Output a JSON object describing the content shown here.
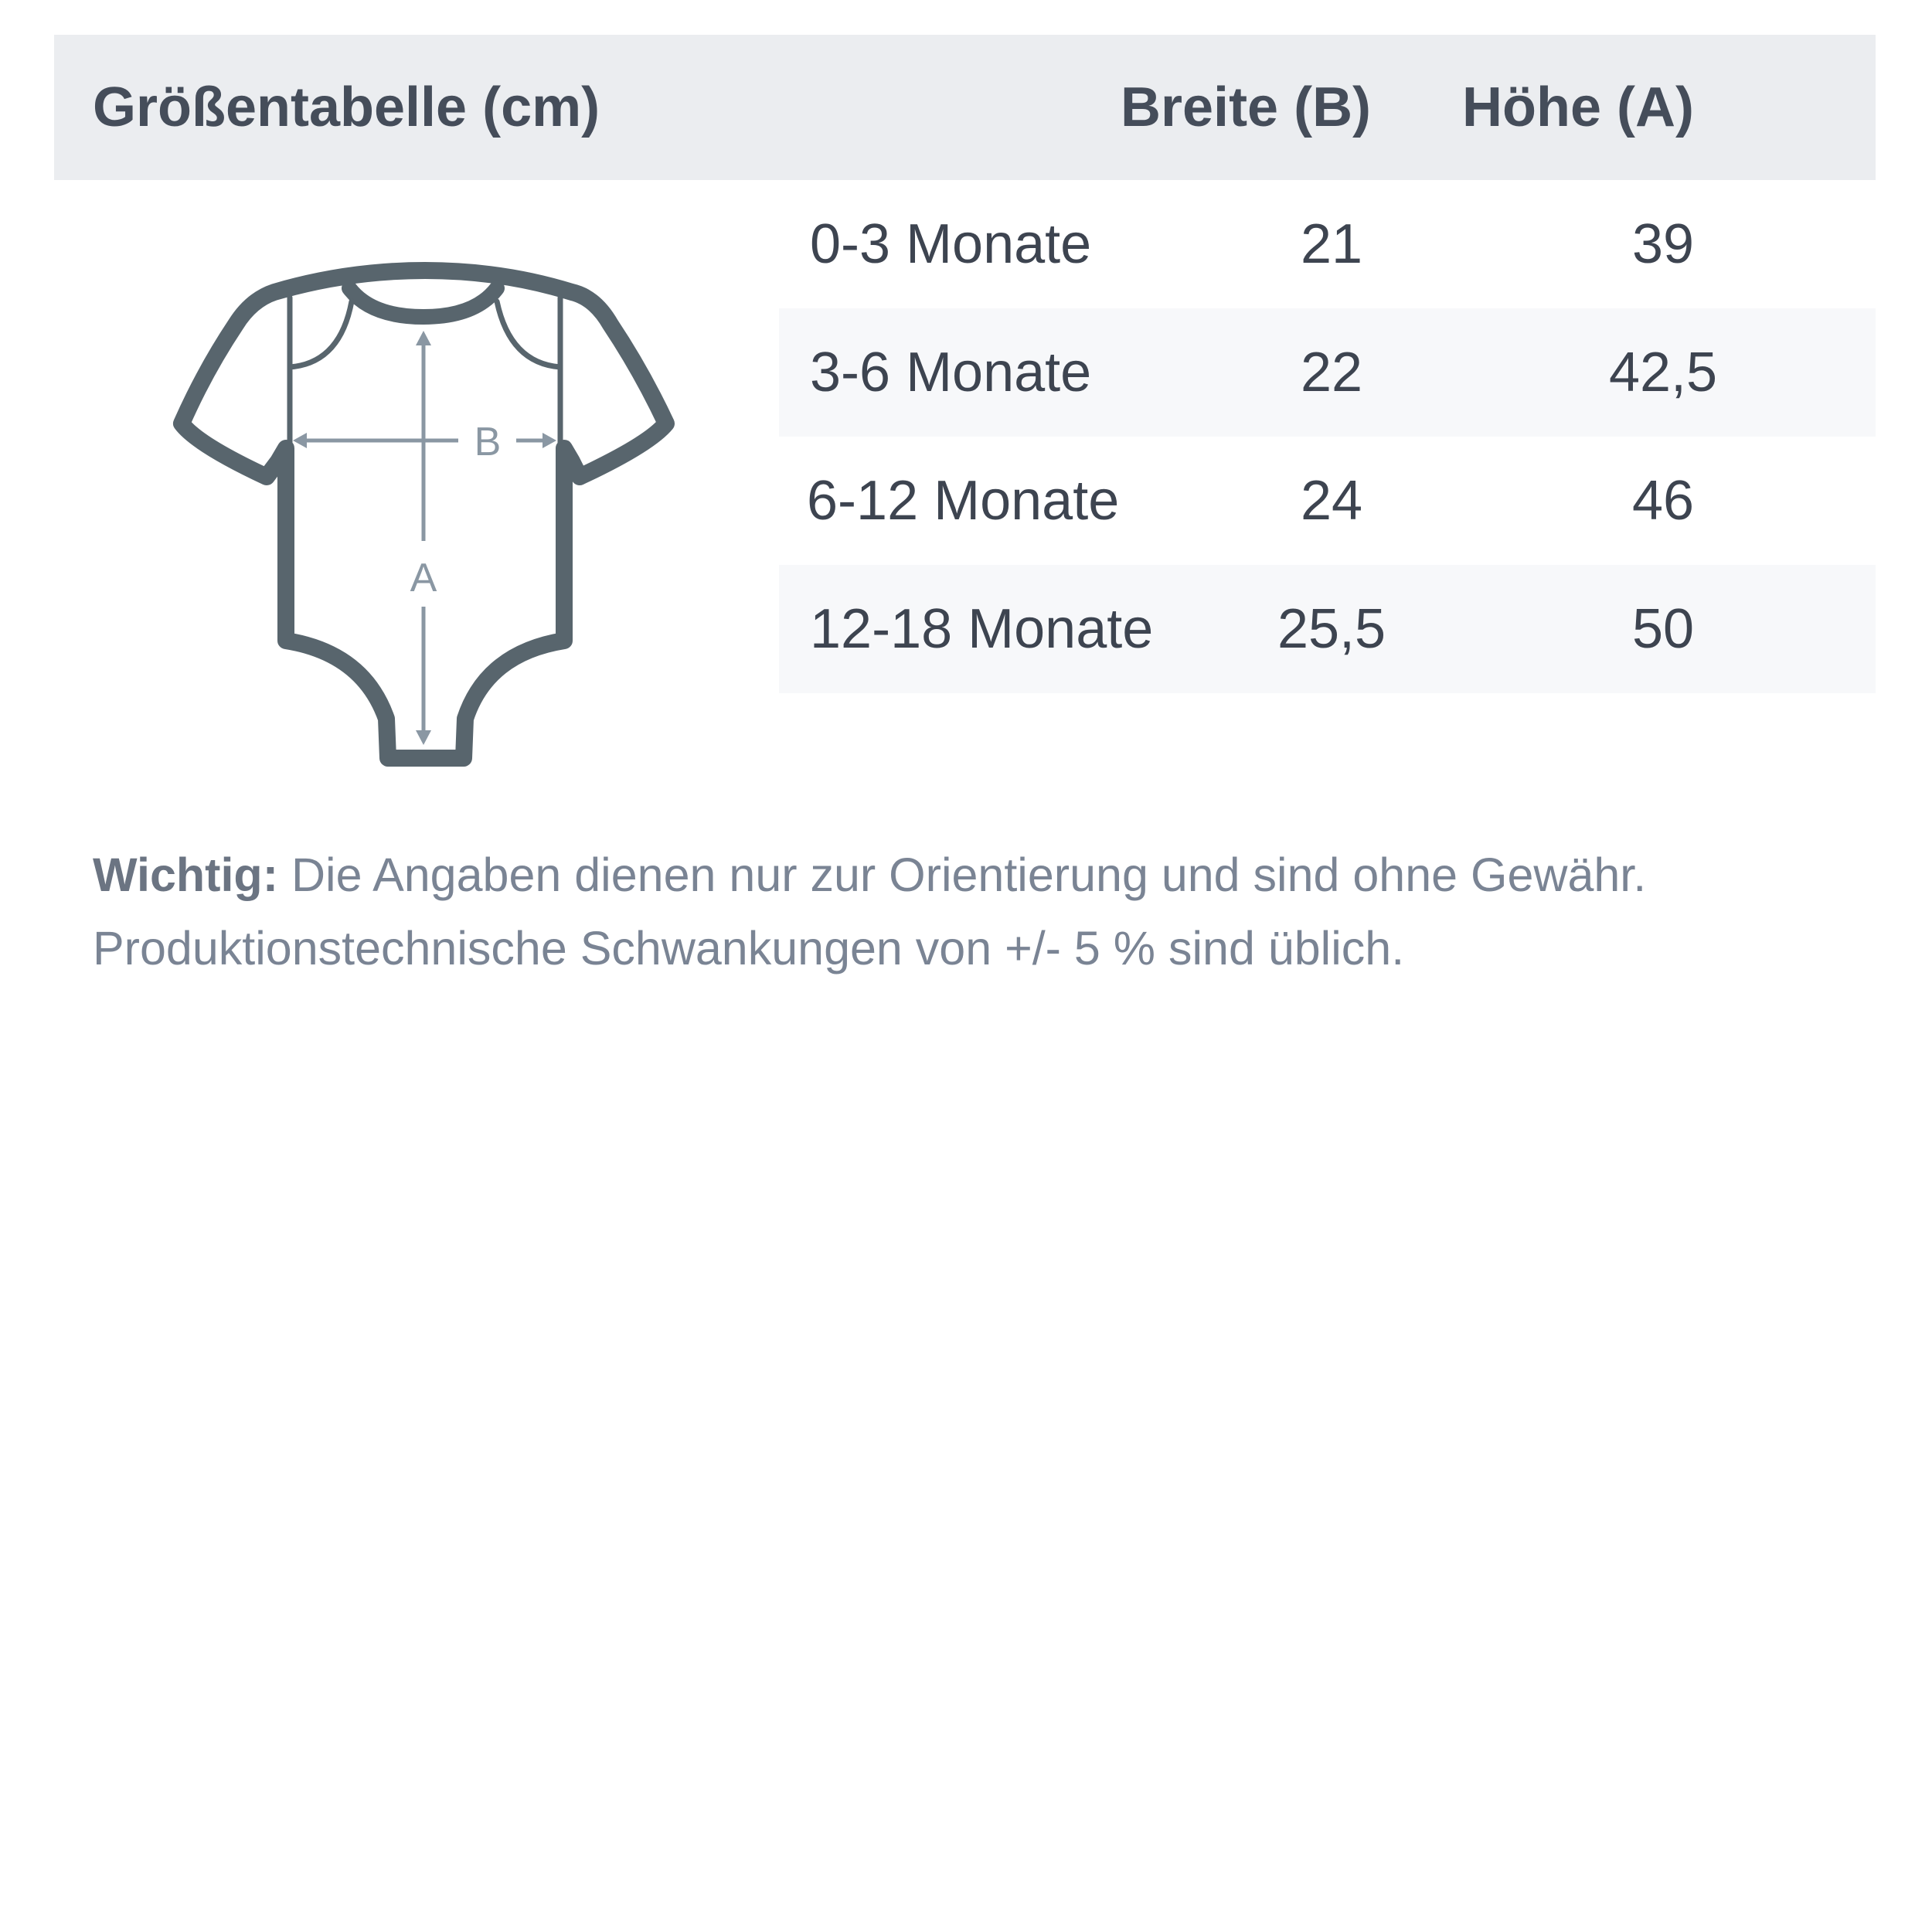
{
  "header": {
    "title": "Größentabelle (cm)",
    "col_width": "Breite (B)",
    "col_height": "Höhe (A)"
  },
  "rows": [
    {
      "size": "0-3 Monate",
      "width": "21",
      "height": "39"
    },
    {
      "size": "3-6 Monate",
      "width": "22",
      "height": "42,5"
    },
    {
      "size": "6-12 Monate",
      "width": "24",
      "height": "46"
    },
    {
      "size": "12-18 Monate",
      "width": "25,5",
      "height": "50"
    }
  ],
  "diagram": {
    "label_b": "B",
    "label_a": "A"
  },
  "note": {
    "label": "Wichtig:",
    "text": " Die Angaben dienen nur zur Orientierung und sind ohne Gewähr. Produktionstechnische Schwankungen von +/- 5 % sind üblich."
  },
  "colors": {
    "header_bg": "#ebedf0",
    "outline": "#58656d",
    "arrows": "#8a97a3",
    "stripe": "#f7f8fa"
  }
}
